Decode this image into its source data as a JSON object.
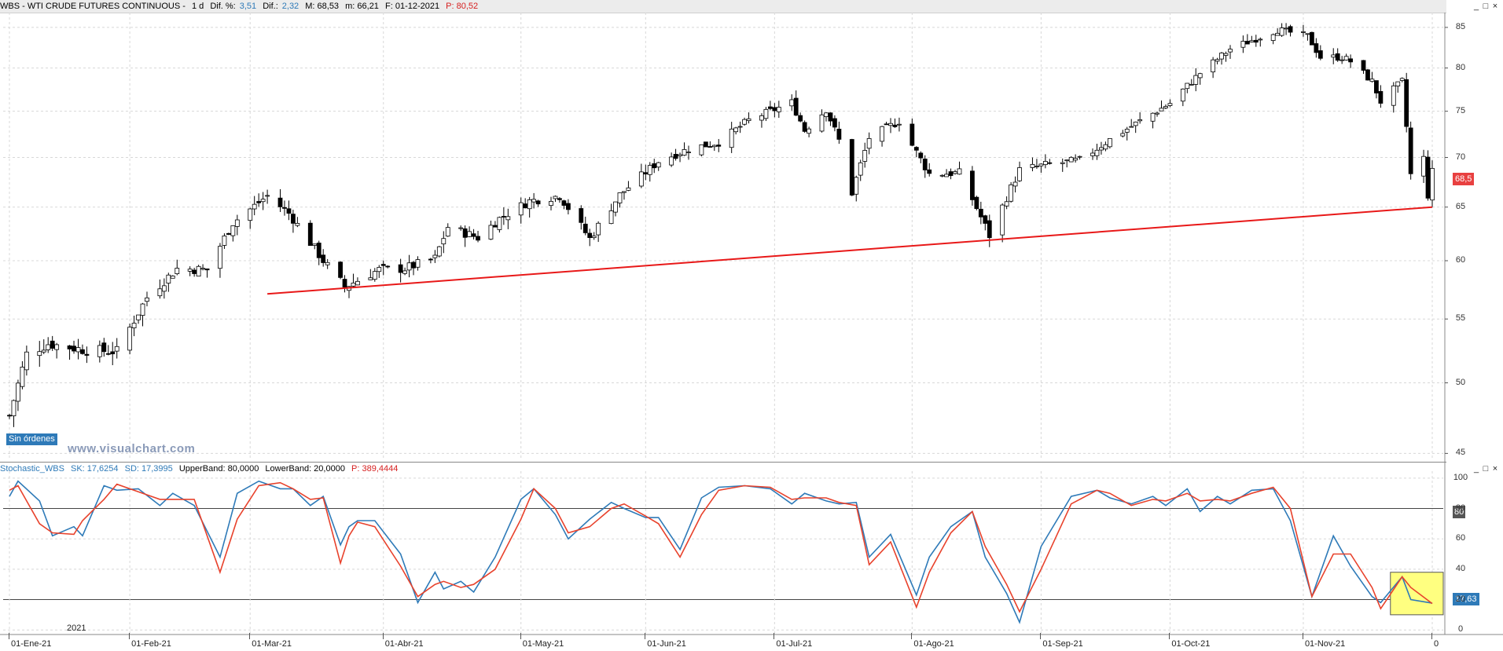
{
  "header": {
    "symbol": "WBS - WTI CRUDE FUTURES CONTINUOUS -",
    "period": "1 d",
    "dif_pct_label": "Dif. %:",
    "dif_pct_value": "3,51",
    "dif_label": "Dif.:",
    "dif_value": "2,32",
    "max_label": "M: 68,53",
    "min_label": "m: 66,21",
    "date_label": "F: 01-12-2021",
    "price_label": "P: 80,52"
  },
  "indicator_header": {
    "name": "Stochastic_WBS",
    "sk": "SK: 17,6254",
    "sd": "SD: 17,3995",
    "upper": "UpperBand: 80,0000",
    "lower": "LowerBand: 20,0000",
    "price": "P: 389,4444"
  },
  "window_buttons": {
    "minimize": "_",
    "maximize": "□",
    "close": "×"
  },
  "orders_label": "Sin órdenes",
  "watermark": "www.visualchart.com",
  "last_price_badge": "68,5",
  "stoch_badge": "17,63",
  "upper_band_badge": "80",
  "year_label": "2021",
  "x_labels": [
    "01-Ene-21",
    "01-Feb-21",
    "01-Mar-21",
    "01-Abr-21",
    "01-May-21",
    "01-Jun-21",
    "01-Jul-21",
    "01-Ago-21",
    "01-Sep-21",
    "01-Oct-21",
    "01-Nov-21",
    "0"
  ],
  "colors": {
    "up_candle": "#ffffff",
    "down_candle": "#000000",
    "trendline": "#e81818",
    "sk_line": "#2e7ab8",
    "sd_line": "#e8422c",
    "highlight": "#ffff80",
    "price_badge": "#e84040",
    "stoch_badge": "#2e7ab8"
  },
  "chart_data": [
    {
      "type": "candlestick",
      "title": "WBS - WTI CRUDE FUTURES CONTINUOUS",
      "y_ticks": [
        45,
        50,
        55,
        60,
        65,
        70,
        75,
        80,
        85
      ],
      "ylim": [
        44.6,
        86.7
      ],
      "y_scale": "log",
      "keypoints": [
        {
          "date": "2021-01-04",
          "close": 47.6
        },
        {
          "date": "2021-01-08",
          "close": 52.2
        },
        {
          "date": "2021-01-13",
          "close": 53.0
        },
        {
          "date": "2021-01-22",
          "close": 52.5
        },
        {
          "date": "2021-01-29",
          "close": 52.4
        },
        {
          "date": "2021-02-05",
          "close": 56.8
        },
        {
          "date": "2021-02-12",
          "close": 59.3
        },
        {
          "date": "2021-02-19",
          "close": 59.2
        },
        {
          "date": "2021-02-25",
          "close": 63.5
        },
        {
          "date": "2021-03-05",
          "close": 66.1
        },
        {
          "date": "2021-03-10",
          "close": 64.4
        },
        {
          "date": "2021-03-18",
          "close": 60.0
        },
        {
          "date": "2021-03-23",
          "close": 57.7
        },
        {
          "date": "2021-03-31",
          "close": 59.2
        },
        {
          "date": "2021-04-06",
          "close": 59.3
        },
        {
          "date": "2021-04-13",
          "close": 60.2
        },
        {
          "date": "2021-04-16",
          "close": 63.1
        },
        {
          "date": "2021-04-23",
          "close": 62.1
        },
        {
          "date": "2021-04-28",
          "close": 63.9
        },
        {
          "date": "2021-05-05",
          "close": 65.6
        },
        {
          "date": "2021-05-12",
          "close": 66.1
        },
        {
          "date": "2021-05-19",
          "close": 62.0
        },
        {
          "date": "2021-05-26",
          "close": 66.2
        },
        {
          "date": "2021-06-04",
          "close": 69.6
        },
        {
          "date": "2021-06-11",
          "close": 70.9
        },
        {
          "date": "2021-06-18",
          "close": 71.6
        },
        {
          "date": "2021-06-25",
          "close": 74.0
        },
        {
          "date": "2021-07-05",
          "close": 76.0
        },
        {
          "date": "2021-07-08",
          "close": 72.9
        },
        {
          "date": "2021-07-13",
          "close": 75.2
        },
        {
          "date": "2021-07-16",
          "close": 71.8
        },
        {
          "date": "2021-07-19",
          "close": 66.4
        },
        {
          "date": "2021-07-23",
          "close": 72.1
        },
        {
          "date": "2021-07-30",
          "close": 73.9
        },
        {
          "date": "2021-08-02",
          "close": 71.3
        },
        {
          "date": "2021-08-06",
          "close": 68.3
        },
        {
          "date": "2021-08-13",
          "close": 68.4
        },
        {
          "date": "2021-08-20",
          "close": 62.3
        },
        {
          "date": "2021-08-27",
          "close": 68.7
        },
        {
          "date": "2021-09-03",
          "close": 69.3
        },
        {
          "date": "2021-09-10",
          "close": 69.7
        },
        {
          "date": "2021-09-17",
          "close": 71.9
        },
        {
          "date": "2021-09-24",
          "close": 73.9
        },
        {
          "date": "2021-10-01",
          "close": 75.9
        },
        {
          "date": "2021-10-08",
          "close": 79.4
        },
        {
          "date": "2021-10-15",
          "close": 82.3
        },
        {
          "date": "2021-10-22",
          "close": 83.8
        },
        {
          "date": "2021-10-26",
          "close": 84.7
        },
        {
          "date": "2021-11-02",
          "close": 83.9
        },
        {
          "date": "2021-11-05",
          "close": 81.3
        },
        {
          "date": "2021-11-10",
          "close": 81.3
        },
        {
          "date": "2021-11-12",
          "close": 80.8
        },
        {
          "date": "2021-11-17",
          "close": 78.4
        },
        {
          "date": "2021-11-19",
          "close": 76.1
        },
        {
          "date": "2021-11-24",
          "close": 78.4
        },
        {
          "date": "2021-11-26",
          "close": 68.2
        },
        {
          "date": "2021-11-29",
          "close": 69.9
        },
        {
          "date": "2021-11-30",
          "close": 66.2
        },
        {
          "date": "2021-12-01",
          "close": 68.5
        }
      ],
      "trendline": {
        "from": {
          "date": "2021-03-05",
          "value": 57.1
        },
        "to": {
          "date": "2021-12-01",
          "value": 65.0
        }
      },
      "last_value": 68.5,
      "grid": true
    },
    {
      "type": "line",
      "title": "Stochastic_WBS",
      "y_ticks": [
        0,
        20,
        40,
        60,
        80,
        100
      ],
      "ylim": [
        -3,
        102
      ],
      "bands": [
        80,
        20
      ],
      "series": [
        {
          "name": "SK",
          "points": [
            [
              "2021-01-04",
              88
            ],
            [
              "2021-01-06",
              98
            ],
            [
              "2021-01-11",
              85
            ],
            [
              "2021-01-14",
              62
            ],
            [
              "2021-01-19",
              68
            ],
            [
              "2021-01-21",
              62
            ],
            [
              "2021-01-26",
              95
            ],
            [
              "2021-01-29",
              92
            ],
            [
              "2021-02-03",
              93
            ],
            [
              "2021-02-08",
              82
            ],
            [
              "2021-02-11",
              90
            ],
            [
              "2021-02-16",
              82
            ],
            [
              "2021-02-22",
              48
            ],
            [
              "2021-02-26",
              90
            ],
            [
              "2021-03-03",
              98
            ],
            [
              "2021-03-08",
              93
            ],
            [
              "2021-03-11",
              93
            ],
            [
              "2021-03-15",
              82
            ],
            [
              "2021-03-18",
              88
            ],
            [
              "2021-03-22",
              56
            ],
            [
              "2021-03-24",
              68
            ],
            [
              "2021-03-26",
              72
            ],
            [
              "2021-03-30",
              72
            ],
            [
              "2021-04-05",
              50
            ],
            [
              "2021-04-09",
              18
            ],
            [
              "2021-04-13",
              38
            ],
            [
              "2021-04-15",
              27
            ],
            [
              "2021-04-19",
              32
            ],
            [
              "2021-04-22",
              25
            ],
            [
              "2021-04-27",
              48
            ],
            [
              "2021-05-03",
              86
            ],
            [
              "2021-05-06",
              93
            ],
            [
              "2021-05-11",
              76
            ],
            [
              "2021-05-14",
              60
            ],
            [
              "2021-05-19",
              73
            ],
            [
              "2021-05-24",
              84
            ],
            [
              "2021-05-27",
              80
            ],
            [
              "2021-06-01",
              74
            ],
            [
              "2021-06-04",
              74
            ],
            [
              "2021-06-09",
              53
            ],
            [
              "2021-06-14",
              87
            ],
            [
              "2021-06-18",
              94
            ],
            [
              "2021-06-24",
              95
            ],
            [
              "2021-06-30",
              93
            ],
            [
              "2021-07-05",
              83
            ],
            [
              "2021-07-08",
              90
            ],
            [
              "2021-07-13",
              85
            ],
            [
              "2021-07-16",
              83
            ],
            [
              "2021-07-20",
              84
            ],
            [
              "2021-07-23",
              48
            ],
            [
              "2021-07-28",
              63
            ],
            [
              "2021-08-03",
              23
            ],
            [
              "2021-08-06",
              48
            ],
            [
              "2021-08-11",
              68
            ],
            [
              "2021-08-16",
              78
            ],
            [
              "2021-08-19",
              48
            ],
            [
              "2021-08-24",
              24
            ],
            [
              "2021-08-27",
              5
            ],
            [
              "2021-09-01",
              55
            ],
            [
              "2021-09-08",
              88
            ],
            [
              "2021-09-14",
              92
            ],
            [
              "2021-09-17",
              87
            ],
            [
              "2021-09-22",
              83
            ],
            [
              "2021-09-27",
              88
            ],
            [
              "2021-09-30",
              82
            ],
            [
              "2021-10-05",
              93
            ],
            [
              "2021-10-08",
              78
            ],
            [
              "2021-10-12",
              88
            ],
            [
              "2021-10-15",
              83
            ],
            [
              "2021-10-20",
              92
            ],
            [
              "2021-10-25",
              93
            ],
            [
              "2021-10-29",
              72
            ],
            [
              "2021-11-03",
              22
            ],
            [
              "2021-11-08",
              62
            ],
            [
              "2021-11-12",
              42
            ],
            [
              "2021-11-17",
              22
            ],
            [
              "2021-11-19",
              18
            ],
            [
              "2021-11-24",
              35
            ],
            [
              "2021-11-26",
              20
            ],
            [
              "2021-12-01",
              17.63
            ]
          ]
        },
        {
          "name": "SD",
          "points": [
            [
              "2021-01-04",
              92
            ],
            [
              "2021-01-06",
              95
            ],
            [
              "2021-01-11",
              70
            ],
            [
              "2021-01-14",
              64
            ],
            [
              "2021-01-19",
              63
            ],
            [
              "2021-01-21",
              72
            ],
            [
              "2021-01-26",
              86
            ],
            [
              "2021-01-29",
              96
            ],
            [
              "2021-02-03",
              91
            ],
            [
              "2021-02-08",
              86
            ],
            [
              "2021-02-11",
              86
            ],
            [
              "2021-02-16",
              86
            ],
            [
              "2021-02-22",
              38
            ],
            [
              "2021-02-26",
              73
            ],
            [
              "2021-03-03",
              95
            ],
            [
              "2021-03-08",
              97
            ],
            [
              "2021-03-11",
              93
            ],
            [
              "2021-03-15",
              86
            ],
            [
              "2021-03-18",
              87
            ],
            [
              "2021-03-22",
              44
            ],
            [
              "2021-03-24",
              62
            ],
            [
              "2021-03-26",
              71
            ],
            [
              "2021-03-30",
              68
            ],
            [
              "2021-04-05",
              42
            ],
            [
              "2021-04-09",
              22
            ],
            [
              "2021-04-13",
              30
            ],
            [
              "2021-04-15",
              32
            ],
            [
              "2021-04-19",
              28
            ],
            [
              "2021-04-22",
              30
            ],
            [
              "2021-04-27",
              40
            ],
            [
              "2021-05-03",
              73
            ],
            [
              "2021-05-06",
              93
            ],
            [
              "2021-05-11",
              80
            ],
            [
              "2021-05-14",
              64
            ],
            [
              "2021-05-19",
              68
            ],
            [
              "2021-05-24",
              80
            ],
            [
              "2021-05-27",
              83
            ],
            [
              "2021-06-01",
              75
            ],
            [
              "2021-06-04",
              70
            ],
            [
              "2021-06-09",
              48
            ],
            [
              "2021-06-14",
              76
            ],
            [
              "2021-06-18",
              92
            ],
            [
              "2021-06-24",
              95
            ],
            [
              "2021-06-30",
              94
            ],
            [
              "2021-07-05",
              86
            ],
            [
              "2021-07-08",
              87
            ],
            [
              "2021-07-13",
              87
            ],
            [
              "2021-07-16",
              84
            ],
            [
              "2021-07-20",
              82
            ],
            [
              "2021-07-23",
              43
            ],
            [
              "2021-07-28",
              58
            ],
            [
              "2021-08-03",
              15
            ],
            [
              "2021-08-06",
              38
            ],
            [
              "2021-08-11",
              64
            ],
            [
              "2021-08-16",
              78
            ],
            [
              "2021-08-19",
              55
            ],
            [
              "2021-08-24",
              30
            ],
            [
              "2021-08-27",
              12
            ],
            [
              "2021-09-01",
              40
            ],
            [
              "2021-09-08",
              83
            ],
            [
              "2021-09-14",
              92
            ],
            [
              "2021-09-17",
              90
            ],
            [
              "2021-09-22",
              82
            ],
            [
              "2021-09-27",
              86
            ],
            [
              "2021-09-30",
              85
            ],
            [
              "2021-10-05",
              90
            ],
            [
              "2021-10-08",
              85
            ],
            [
              "2021-10-12",
              86
            ],
            [
              "2021-10-15",
              85
            ],
            [
              "2021-10-20",
              90
            ],
            [
              "2021-10-25",
              94
            ],
            [
              "2021-10-29",
              80
            ],
            [
              "2021-11-03",
              22
            ],
            [
              "2021-11-08",
              50
            ],
            [
              "2021-11-12",
              50
            ],
            [
              "2021-11-17",
              28
            ],
            [
              "2021-11-19",
              14
            ],
            [
              "2021-11-24",
              35
            ],
            [
              "2021-11-26",
              28
            ],
            [
              "2021-12-01",
              17.4
            ]
          ]
        }
      ],
      "highlight_range": {
        "x": [
          "2021-11-22",
          "2021-12-01"
        ],
        "y": [
          10,
          38
        ]
      },
      "last_values": {
        "SK": 17.63,
        "SD": 17.4
      },
      "grid": true
    }
  ]
}
